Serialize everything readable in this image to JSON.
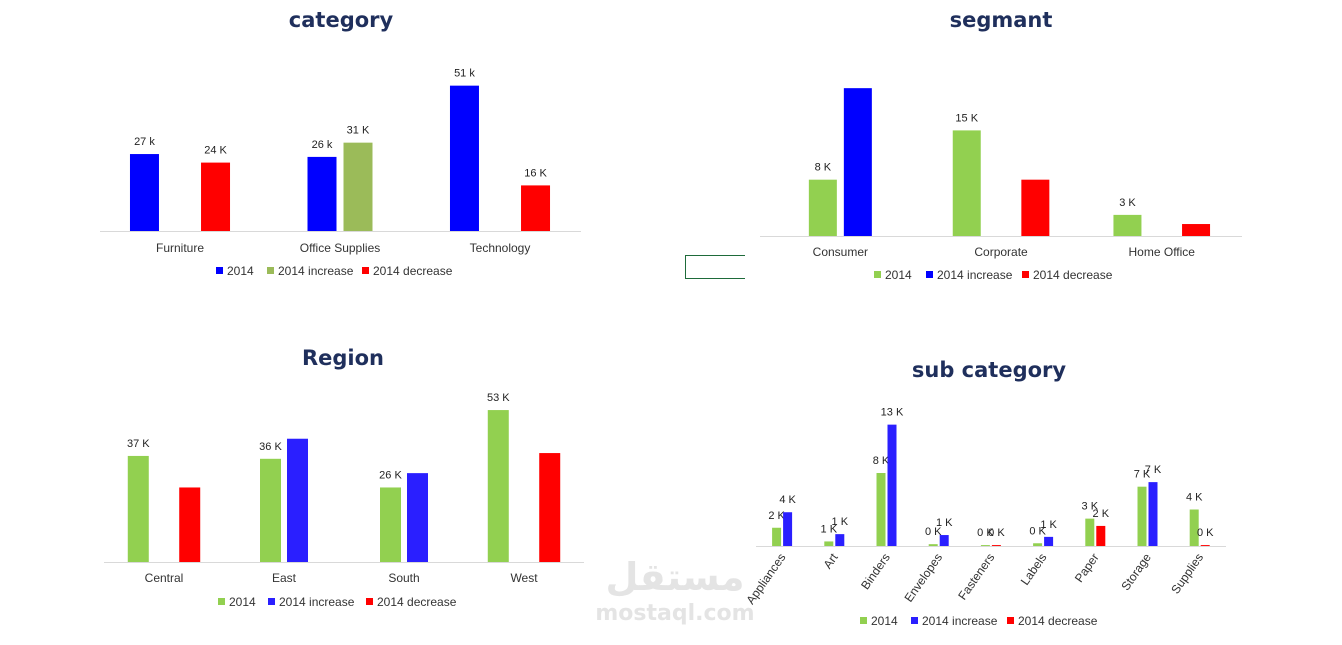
{
  "colors": {
    "blue": "#0000ff",
    "green_olive": "#9bbb59",
    "green": "#92d050",
    "blue_violet": "#2a1fff",
    "red": "#ff0000",
    "axis": "#d9d9d9",
    "title": "#1f2f5c"
  },
  "watermark": {
    "arabic": "مستقل",
    "latin": "mostaql.com"
  },
  "chart_data": [
    {
      "id": "category",
      "type": "bar",
      "title": "category",
      "categories": [
        "Furniture",
        "Office Supplies",
        "Technology"
      ],
      "series": [
        {
          "name": "2014",
          "color": "#0000ff",
          "values": [
            27,
            26,
            51
          ],
          "labels": [
            "27  k",
            "26  k",
            "51  k"
          ]
        },
        {
          "name": "2014 increase",
          "color": "#9bbb59",
          "values": [
            null,
            31,
            null
          ],
          "labels": [
            "",
            "31 K",
            ""
          ]
        },
        {
          "name": "2014 decrease",
          "color": "#ff0000",
          "values": [
            24,
            null,
            16
          ],
          "labels": [
            "24 K",
            "",
            "16 K"
          ]
        }
      ],
      "ylim": [
        0,
        60
      ],
      "legend": "bottom",
      "grid": false
    },
    {
      "id": "segment",
      "type": "bar",
      "title": "segmant",
      "categories": [
        "Consumer",
        "Corporate",
        "Home Office"
      ],
      "series": [
        {
          "name": "2014",
          "color": "#92d050",
          "values": [
            8,
            15,
            3
          ],
          "labels": [
            "8 K",
            "15 K",
            "3 K"
          ]
        },
        {
          "name": "2014 increase",
          "color": "#0000ff",
          "values": [
            21,
            null,
            null
          ],
          "labels": [
            "",
            "",
            ""
          ]
        },
        {
          "name": "2014 decrease",
          "color": "#ff0000",
          "values": [
            null,
            8,
            1.7
          ],
          "labels": [
            "",
            "",
            ""
          ]
        }
      ],
      "ylim": [
        0,
        25
      ],
      "legend": "bottom",
      "grid": false
    },
    {
      "id": "region",
      "type": "bar",
      "title": "Region",
      "categories": [
        "Central",
        "East",
        "South",
        "West"
      ],
      "series": [
        {
          "name": "2014",
          "color": "#92d050",
          "values": [
            37,
            36,
            26,
            53
          ],
          "labels": [
            "37 K",
            "36 K",
            "26 K",
            "53 K"
          ]
        },
        {
          "name": "2014 increase",
          "color": "#2a1fff",
          "values": [
            null,
            43,
            31,
            null
          ],
          "labels": [
            "",
            "",
            "",
            ""
          ]
        },
        {
          "name": "2014 decrease",
          "color": "#ff0000",
          "values": [
            26,
            null,
            null,
            38
          ],
          "labels": [
            "",
            "",
            "",
            ""
          ]
        }
      ],
      "ylim": [
        0,
        60
      ],
      "legend": "bottom",
      "grid": false
    },
    {
      "id": "subcategory",
      "type": "bar",
      "title": "sub category",
      "categories": [
        "Appliances",
        "Art",
        "Binders",
        "Envelopes",
        "Fasteners",
        "Labels",
        "Paper",
        "Storage",
        "Supplies"
      ],
      "series": [
        {
          "name": "2014",
          "color": "#92d050",
          "values": [
            2,
            0.5,
            8,
            0.2,
            0.1,
            0.3,
            3,
            6.5,
            4
          ],
          "labels": [
            "2 K",
            "1 K",
            "8 K",
            "0 K",
            "0 K",
            "0 K",
            "3 K",
            "7 K",
            "4 K"
          ]
        },
        {
          "name": "2014 increase",
          "color": "#2a1fff",
          "values": [
            3.7,
            1.3,
            13.3,
            1.2,
            null,
            1,
            null,
            7,
            null
          ],
          "labels": [
            "4 K",
            "1 K",
            "13 K",
            "1 K",
            "",
            "1 K",
            "",
            "7 K",
            ""
          ]
        },
        {
          "name": "2014 decrease",
          "color": "#ff0000",
          "values": [
            null,
            null,
            null,
            null,
            0.1,
            null,
            2.2,
            null,
            0.1
          ],
          "labels": [
            "",
            "",
            "",
            "",
            "0 K",
            "",
            "2 K",
            "",
            "0 K"
          ]
        }
      ],
      "ylim": [
        0,
        16
      ],
      "legend": "bottom",
      "grid": false
    }
  ]
}
